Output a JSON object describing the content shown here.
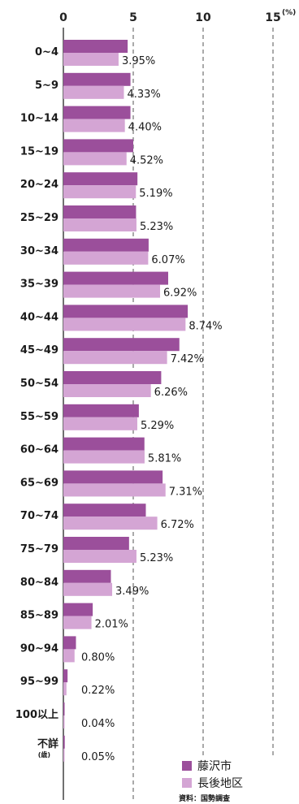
{
  "chart_data": {
    "type": "bar",
    "orientation": "horizontal",
    "x_unit": "(%)",
    "xlim": [
      0,
      15
    ],
    "x_ticks": [
      "0",
      "5",
      "10",
      "15"
    ],
    "grid": "dashed vertical lines at 5, 10, 15",
    "categories": [
      "0~4",
      "5~9",
      "10~14",
      "15~19",
      "20~24",
      "25~29",
      "30~34",
      "35~39",
      "40~44",
      "45~49",
      "50~54",
      "55~59",
      "60~64",
      "65~69",
      "70~74",
      "75~79",
      "80~84",
      "85~89",
      "90~94",
      "95~99",
      "100以上",
      "不詳"
    ],
    "category_sublabels": {
      "不詳": "(歳)"
    },
    "series": [
      {
        "name": "藤沢市",
        "color": "#9b4f9b",
        "values": [
          4.6,
          4.8,
          4.8,
          5.0,
          5.3,
          5.2,
          6.1,
          7.5,
          8.9,
          8.3,
          7.0,
          5.4,
          5.8,
          7.1,
          5.9,
          4.7,
          3.4,
          2.1,
          0.9,
          0.3,
          0.05,
          0.1
        ]
      },
      {
        "name": "長後地区",
        "color": "#d4a5d4",
        "values": [
          3.95,
          4.33,
          4.4,
          4.52,
          5.19,
          5.23,
          6.07,
          6.92,
          8.74,
          7.42,
          6.26,
          5.29,
          5.81,
          7.31,
          6.72,
          5.23,
          3.49,
          2.01,
          0.8,
          0.22,
          0.04,
          0.05
        ]
      }
    ],
    "data_labels": [
      "3.95%",
      "4.33%",
      "4.40%",
      "4.52%",
      "5.19%",
      "5.23%",
      "6.07%",
      "6.92%",
      "8.74%",
      "7.42%",
      "6.26%",
      "5.29%",
      "5.81%",
      "7.31%",
      "6.72%",
      "5.23%",
      "3.49%",
      "2.01%",
      "0.80%",
      "0.22%",
      "0.04%",
      "0.05%"
    ],
    "legend": {
      "position": "bottom-right",
      "items": [
        "藤沢市",
        "長後地区"
      ]
    },
    "source": "資料：国勢調査"
  }
}
